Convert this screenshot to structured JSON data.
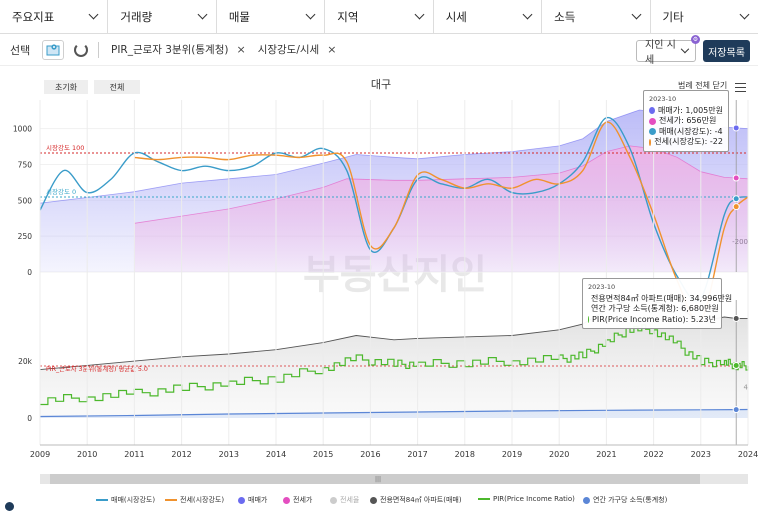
{
  "topbar": {
    "items": [
      "주요지표",
      "거래량",
      "매물",
      "지역",
      "시세",
      "소득",
      "기타"
    ]
  },
  "filterbar": {
    "select_label": "선택",
    "chips": [
      "PIR_근로자 3분위(통계청)",
      "시장강도/시세"
    ],
    "period_label": "지인 시세",
    "save_label": "저장목록"
  },
  "chart_controls": {
    "reset_label": "초기화",
    "all_label": "전체",
    "legend_toggle_label": "범례 전체 닫기"
  },
  "watermark": "부동산지인",
  "chart_data": [
    {
      "type": "line",
      "title": "대구",
      "x_range": [
        "2009",
        "2024"
      ],
      "x_ticks": [
        "2009",
        "2010",
        "2011",
        "2012",
        "2013",
        "2014",
        "2015",
        "2016",
        "2017",
        "2018",
        "2019",
        "2020",
        "2021",
        "2022",
        "2023",
        "2024"
      ],
      "y_ticks_left": [
        "1000",
        "750",
        "500",
        "250",
        "0"
      ],
      "y_ticks_right": [
        "-200"
      ],
      "reference_lines": [
        {
          "label": "시장강도 100",
          "value": 100,
          "color": "#d62728"
        },
        {
          "label": "시장강도 0",
          "value": 0,
          "color": "#3aa7c9"
        }
      ],
      "series": [
        {
          "name": "매매(시장강도)",
          "color": "#3a9cc9",
          "x": [
            2009.0,
            2009.5,
            2010.0,
            2010.5,
            2011.0,
            2011.5,
            2012.0,
            2012.5,
            2013.0,
            2013.5,
            2014.0,
            2014.5,
            2015.0,
            2015.5,
            2016.0,
            2016.5,
            2017.0,
            2017.5,
            2018.0,
            2018.5,
            2019.0,
            2019.5,
            2020.0,
            2020.5,
            2021.0,
            2021.5,
            2022.0,
            2022.5,
            2023.0,
            2023.5,
            2023.75,
            2024.0
          ],
          "y": [
            -30,
            60,
            10,
            40,
            100,
            80,
            60,
            70,
            60,
            70,
            100,
            90,
            110,
            60,
            -120,
            -70,
            40,
            30,
            20,
            40,
            10,
            10,
            30,
            80,
            180,
            110,
            -60,
            -180,
            -230,
            -40,
            -4,
            0
          ]
        },
        {
          "name": "전세(시장강도)",
          "color": "#f0922e",
          "x": [
            2011.0,
            2011.5,
            2012.0,
            2012.5,
            2013.0,
            2013.5,
            2014.0,
            2014.5,
            2015.0,
            2015.5,
            2016.0,
            2016.5,
            2017.0,
            2017.5,
            2018.0,
            2018.5,
            2019.0,
            2019.5,
            2020.0,
            2020.5,
            2021.0,
            2021.5,
            2022.0,
            2022.5,
            2023.0,
            2023.5,
            2023.75,
            2024.0
          ],
          "y": [
            90,
            85,
            90,
            90,
            85,
            95,
            95,
            90,
            95,
            80,
            -110,
            -70,
            50,
            40,
            20,
            30,
            20,
            40,
            30,
            60,
            170,
            90,
            -40,
            -190,
            -280,
            -70,
            -22,
            0
          ]
        },
        {
          "name": "매매가",
          "color": "#6b6bf0",
          "fill": "#b9b9f7",
          "x": [
            2009.0,
            2010.0,
            2011.0,
            2012.0,
            2013.0,
            2014.0,
            2015.0,
            2015.7,
            2016.5,
            2017.0,
            2018.0,
            2019.0,
            2020.0,
            2020.5,
            2021.0,
            2021.7,
            2022.0,
            2022.5,
            2023.0,
            2023.5,
            2023.75,
            2024.0
          ],
          "y": [
            480,
            520,
            560,
            620,
            650,
            680,
            760,
            820,
            800,
            790,
            820,
            840,
            880,
            930,
            1050,
            1130,
            1120,
            1080,
            960,
            1010,
            1005,
            1000
          ]
        },
        {
          "name": "전세가",
          "color": "#e44ec0",
          "fill": "#eeb3e6",
          "x": [
            2011.0,
            2012.0,
            2013.0,
            2014.0,
            2015.0,
            2015.5,
            2016.5,
            2017.0,
            2018.0,
            2019.0,
            2020.0,
            2020.5,
            2021.0,
            2021.5,
            2022.0,
            2022.5,
            2023.0,
            2023.5,
            2023.75,
            2024.0
          ],
          "y": [
            340,
            390,
            440,
            510,
            590,
            650,
            640,
            640,
            650,
            660,
            690,
            740,
            840,
            880,
            860,
            800,
            700,
            660,
            656,
            650
          ]
        }
      ],
      "tooltip": {
        "date": "2023-10",
        "rows": [
          {
            "label": "매매가: 1,005만원",
            "color": "#6b6bf0"
          },
          {
            "label": "전세가: 656만원",
            "color": "#e44ec0"
          },
          {
            "label": "매매(시장강도): -4",
            "color": "#3a9cc9"
          },
          {
            "label": "전세(시장강도): -22",
            "color": "#f0922e"
          }
        ]
      }
    },
    {
      "type": "line",
      "y_ticks_left": [
        "20k",
        "0"
      ],
      "y_ticks_right": [
        "4"
      ],
      "reference_lines": [
        {
          "label": "PIR_근로자 3분위(통계청) 평균값 5.0",
          "value": 5.0,
          "color": "#d62728"
        }
      ],
      "series": [
        {
          "name": "전용면적84㎡ 아파트(매매)",
          "color": "#555555",
          "fill": "#e6e6e6",
          "x": [
            2009.0,
            2010.0,
            2011.0,
            2012.0,
            2013.0,
            2014.0,
            2015.0,
            2015.7,
            2016.5,
            2017.0,
            2018.0,
            2019.0,
            2020.0,
            2020.5,
            2021.0,
            2021.5,
            2022.0,
            2022.5,
            2023.0,
            2023.5,
            2023.75,
            2024.0
          ],
          "y": [
            17000,
            18500,
            20000,
            21500,
            22500,
            24000,
            26500,
            29000,
            27500,
            28000,
            28500,
            29000,
            31000,
            33000,
            38000,
            42000,
            41000,
            39000,
            34000,
            35500,
            34996,
            35000
          ]
        },
        {
          "name": "연간 가구당 소득(통계청)",
          "color": "#5b86d6",
          "x": [
            2009.0,
            2011.0,
            2013.0,
            2015.0,
            2017.0,
            2019.0,
            2021.0,
            2023.0,
            2023.75,
            2024.0
          ],
          "y": [
            5300,
            5500,
            5800,
            6000,
            6200,
            6400,
            6550,
            6650,
            6680,
            6700
          ]
        },
        {
          "name": "PIR(Price Income Ratio)",
          "color": "#4cb82c",
          "x": [
            2009.0,
            2010.0,
            2011.0,
            2012.0,
            2013.0,
            2014.0,
            2015.0,
            2015.7,
            2016.5,
            2017.0,
            2018.0,
            2019.0,
            2020.0,
            2020.5,
            2021.0,
            2021.5,
            2022.0,
            2022.5,
            2023.0,
            2023.5,
            2023.75,
            2024.0
          ],
          "y": [
            3.2,
            3.4,
            3.6,
            3.9,
            4.2,
            4.5,
            5.1,
            5.6,
            5.3,
            5.3,
            5.4,
            5.5,
            5.6,
            5.8,
            6.6,
            7.4,
            7.3,
            6.4,
            5.4,
            5.4,
            5.23,
            5.2
          ]
        }
      ],
      "tooltip": {
        "date": "2023-10",
        "rows": [
          {
            "label": "전용면적84㎡ 아파트(매매): 34,996만원",
            "color": "#555555"
          },
          {
            "label": "연간 가구당 소득(통계청): 6,680만원",
            "color": "#5b86d6"
          },
          {
            "label": "PIR(Price Income Ratio): 5.23년",
            "color": "#4cb82c"
          }
        ]
      }
    }
  ],
  "legend": [
    {
      "label": "매매(시장강도)",
      "color": "#3a9cc9",
      "kind": "line"
    },
    {
      "label": "전세(시장강도)",
      "color": "#f0922e",
      "kind": "line"
    },
    {
      "label": "매매가",
      "color": "#6b6bf0",
      "kind": "dot"
    },
    {
      "label": "전세가",
      "color": "#e44ec0",
      "kind": "dot"
    },
    {
      "label": "전세율",
      "color": "#cccccc",
      "kind": "dot"
    },
    {
      "label": "전용면적84㎡ 아파트(매매)",
      "color": "#555555",
      "kind": "dot"
    },
    {
      "label": "PIR(Price Income Ratio)",
      "color": "#4cb82c",
      "kind": "line"
    },
    {
      "label": "연간 가구당 소득(통계청)",
      "color": "#5b86d6",
      "kind": "dot"
    }
  ]
}
